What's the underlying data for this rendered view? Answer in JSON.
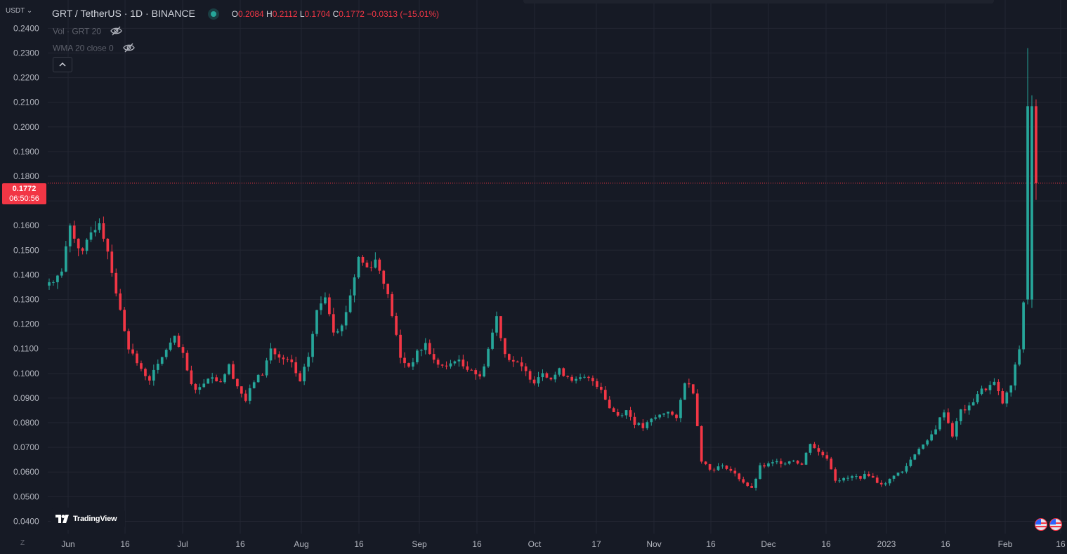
{
  "header": {
    "symbol": "GRT / TetherUS · 1D · BINANCE",
    "ohlc": {
      "o_label": "O",
      "o": "0.2084",
      "h_label": "H",
      "h": "0.2112",
      "l_label": "L",
      "l": "0.1704",
      "c_label": "C",
      "c": "0.1772",
      "change": "−0.0313 (−15.01%)"
    },
    "status_color": "#26a69a"
  },
  "indicators": {
    "volume": "Vol · GRT 20",
    "wma": "WMA 20 close 0"
  },
  "axis_unit": "USDT",
  "price_tag": {
    "price": "0.1772",
    "countdown": "06:50:56"
  },
  "branding": {
    "logo_text": "TradingView"
  },
  "colors": {
    "background": "#161a25",
    "up": "#26a69a",
    "down": "#f23645",
    "grid": "#232632",
    "text": "#b2b5be"
  },
  "chart_data": {
    "type": "candlestick",
    "ylim": [
      0.035,
      0.2515
    ],
    "y_ticks": [
      "0.2400",
      "0.2300",
      "0.2200",
      "0.2100",
      "0.2000",
      "0.1900",
      "0.1800",
      "0.1700",
      "0.1600",
      "0.1500",
      "0.1400",
      "0.1300",
      "0.1200",
      "0.1100",
      "0.1000",
      "0.0900",
      "0.0800",
      "0.0700",
      "0.0600",
      "0.0500",
      "0.0400"
    ],
    "x_ticks": [
      "Jun",
      "16",
      "Jul",
      "16",
      "Aug",
      "16",
      "Sep",
      "16",
      "Oct",
      "17",
      "Nov",
      "16",
      "Dec",
      "16",
      "2023",
      "16",
      "Feb",
      "16"
    ],
    "last_price": 0.1772,
    "control_points": [
      [
        0,
        0.137
      ],
      [
        3,
        0.141
      ],
      [
        5,
        0.16
      ],
      [
        8,
        0.148
      ],
      [
        10,
        0.157
      ],
      [
        12,
        0.162
      ],
      [
        14,
        0.15
      ],
      [
        17,
        0.125
      ],
      [
        19,
        0.111
      ],
      [
        22,
        0.101
      ],
      [
        24,
        0.098
      ],
      [
        26,
        0.103
      ],
      [
        28,
        0.11
      ],
      [
        30,
        0.114
      ],
      [
        32,
        0.107
      ],
      [
        34,
        0.095
      ],
      [
        36,
        0.094
      ],
      [
        38,
        0.099
      ],
      [
        41,
        0.097
      ],
      [
        43,
        0.103
      ],
      [
        45,
        0.095
      ],
      [
        47,
        0.089
      ],
      [
        49,
        0.097
      ],
      [
        51,
        0.1
      ],
      [
        53,
        0.11
      ],
      [
        55,
        0.106
      ],
      [
        58,
        0.104
      ],
      [
        60,
        0.096
      ],
      [
        62,
        0.107
      ],
      [
        64,
        0.125
      ],
      [
        66,
        0.132
      ],
      [
        68,
        0.118
      ],
      [
        70,
        0.119
      ],
      [
        72,
        0.132
      ],
      [
        74,
        0.147
      ],
      [
        76,
        0.143
      ],
      [
        78,
        0.146
      ],
      [
        80,
        0.138
      ],
      [
        82,
        0.124
      ],
      [
        84,
        0.106
      ],
      [
        86,
        0.103
      ],
      [
        88,
        0.108
      ],
      [
        90,
        0.112
      ],
      [
        92,
        0.105
      ],
      [
        95,
        0.102
      ],
      [
        97,
        0.106
      ],
      [
        99,
        0.103
      ],
      [
        101,
        0.102
      ],
      [
        103,
        0.098
      ],
      [
        105,
        0.11
      ],
      [
        107,
        0.123
      ],
      [
        109,
        0.108
      ],
      [
        111,
        0.105
      ],
      [
        113,
        0.102
      ],
      [
        116,
        0.097
      ],
      [
        118,
        0.101
      ],
      [
        120,
        0.098
      ],
      [
        122,
        0.101
      ],
      [
        124,
        0.099
      ],
      [
        126,
        0.097
      ],
      [
        128,
        0.098
      ],
      [
        130,
        0.097
      ],
      [
        132,
        0.094
      ],
      [
        134,
        0.086
      ],
      [
        136,
        0.083
      ],
      [
        138,
        0.085
      ],
      [
        140,
        0.08
      ],
      [
        142,
        0.078
      ],
      [
        144,
        0.081
      ],
      [
        146,
        0.083
      ],
      [
        148,
        0.085
      ],
      [
        150,
        0.081
      ],
      [
        152,
        0.097
      ],
      [
        154,
        0.093
      ],
      [
        156,
        0.065
      ],
      [
        158,
        0.061
      ],
      [
        160,
        0.062
      ],
      [
        162,
        0.062
      ],
      [
        164,
        0.059
      ],
      [
        166,
        0.056
      ],
      [
        168,
        0.053
      ],
      [
        170,
        0.062
      ],
      [
        172,
        0.063
      ],
      [
        174,
        0.064
      ],
      [
        176,
        0.064
      ],
      [
        178,
        0.065
      ],
      [
        180,
        0.063
      ],
      [
        182,
        0.072
      ],
      [
        184,
        0.068
      ],
      [
        186,
        0.066
      ],
      [
        188,
        0.057
      ],
      [
        190,
        0.057
      ],
      [
        192,
        0.058
      ],
      [
        194,
        0.058
      ],
      [
        196,
        0.059
      ],
      [
        198,
        0.056
      ],
      [
        200,
        0.055
      ],
      [
        202,
        0.059
      ],
      [
        204,
        0.06
      ],
      [
        206,
        0.065
      ],
      [
        208,
        0.07
      ],
      [
        210,
        0.072
      ],
      [
        212,
        0.078
      ],
      [
        214,
        0.085
      ],
      [
        216,
        0.075
      ],
      [
        218,
        0.085
      ],
      [
        220,
        0.086
      ],
      [
        222,
        0.092
      ],
      [
        224,
        0.094
      ],
      [
        226,
        0.096
      ],
      [
        228,
        0.088
      ],
      [
        230,
        0.095
      ],
      [
        232,
        0.11
      ],
      [
        233,
        0.129
      ],
      [
        234,
        0.13
      ],
      [
        235,
        0.2084
      ]
    ],
    "last_candle": {
      "o": 0.2084,
      "h": 0.2112,
      "l": 0.1704,
      "c": 0.1772
    },
    "prev_candle": {
      "o": 0.13,
      "h": 0.232,
      "l": 0.128,
      "c": 0.2084
    }
  }
}
